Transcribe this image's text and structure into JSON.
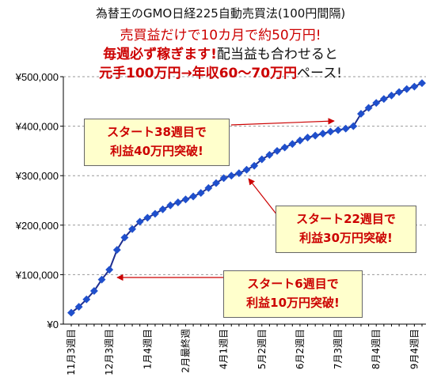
{
  "titles": {
    "line1": "為替王のGMO日経225自動売買法(100円間隔)",
    "line2": "売買益だけで10カ月で約50万円!",
    "line3a": "毎週必ず稼ぎます!",
    "line3b": "配当益も合わせると",
    "line4a": "元手100万円→年収60〜70万円",
    "line4b": "ペース!"
  },
  "colors": {
    "line": "#1f2f8f",
    "marker": "#1f4fcc",
    "accent": "#cc0000",
    "callout_bg": "#ffffcc",
    "grid": "#999999"
  },
  "callouts": [
    {
      "line1": "スタート38週目で",
      "line2": "利益40万円突破!"
    },
    {
      "line1": "スタート22週目で",
      "line2": "利益30万円突破!"
    },
    {
      "line1": "スタート6週目で",
      "line2": "利益10万円突破!"
    }
  ],
  "chart_data": {
    "type": "line",
    "title": "",
    "xlabel": "",
    "ylabel": "",
    "ylim": [
      0,
      500000
    ],
    "yticks": [
      0,
      100000,
      200000,
      300000,
      400000,
      500000
    ],
    "ytick_labels": [
      "¥0",
      "¥100,000",
      "¥200,000",
      "¥300,000",
      "¥400,000",
      "¥500,000"
    ],
    "grid": "horizontal-dashed",
    "legend": "none",
    "x_labels": [
      {
        "label": "11月3週目",
        "index": 0
      },
      {
        "label": "12月3週目",
        "index": 5
      },
      {
        "label": "1月4週目",
        "index": 10
      },
      {
        "label": "2月最終週",
        "index": 15
      },
      {
        "label": "4月1週目",
        "index": 20
      },
      {
        "label": "5月2週目",
        "index": 25
      },
      {
        "label": "6月2週目",
        "index": 30
      },
      {
        "label": "7月3週目",
        "index": 35
      },
      {
        "label": "8月4週目",
        "index": 40
      },
      {
        "label": "9月4週目",
        "index": 45
      }
    ],
    "series": [
      {
        "values": [
          23000,
          35000,
          50000,
          67000,
          90000,
          110000,
          150000,
          175000,
          192000,
          207000,
          215000,
          223000,
          232000,
          240000,
          246000,
          252000,
          258000,
          265000,
          275000,
          285000,
          295000,
          300000,
          305000,
          312000,
          320000,
          333000,
          342000,
          350000,
          357000,
          364000,
          371000,
          377000,
          381000,
          385000,
          389000,
          392000,
          395000,
          400000,
          425000,
          437000,
          447000,
          455000,
          462000,
          469000,
          475000,
          480000,
          487000
        ]
      }
    ]
  }
}
